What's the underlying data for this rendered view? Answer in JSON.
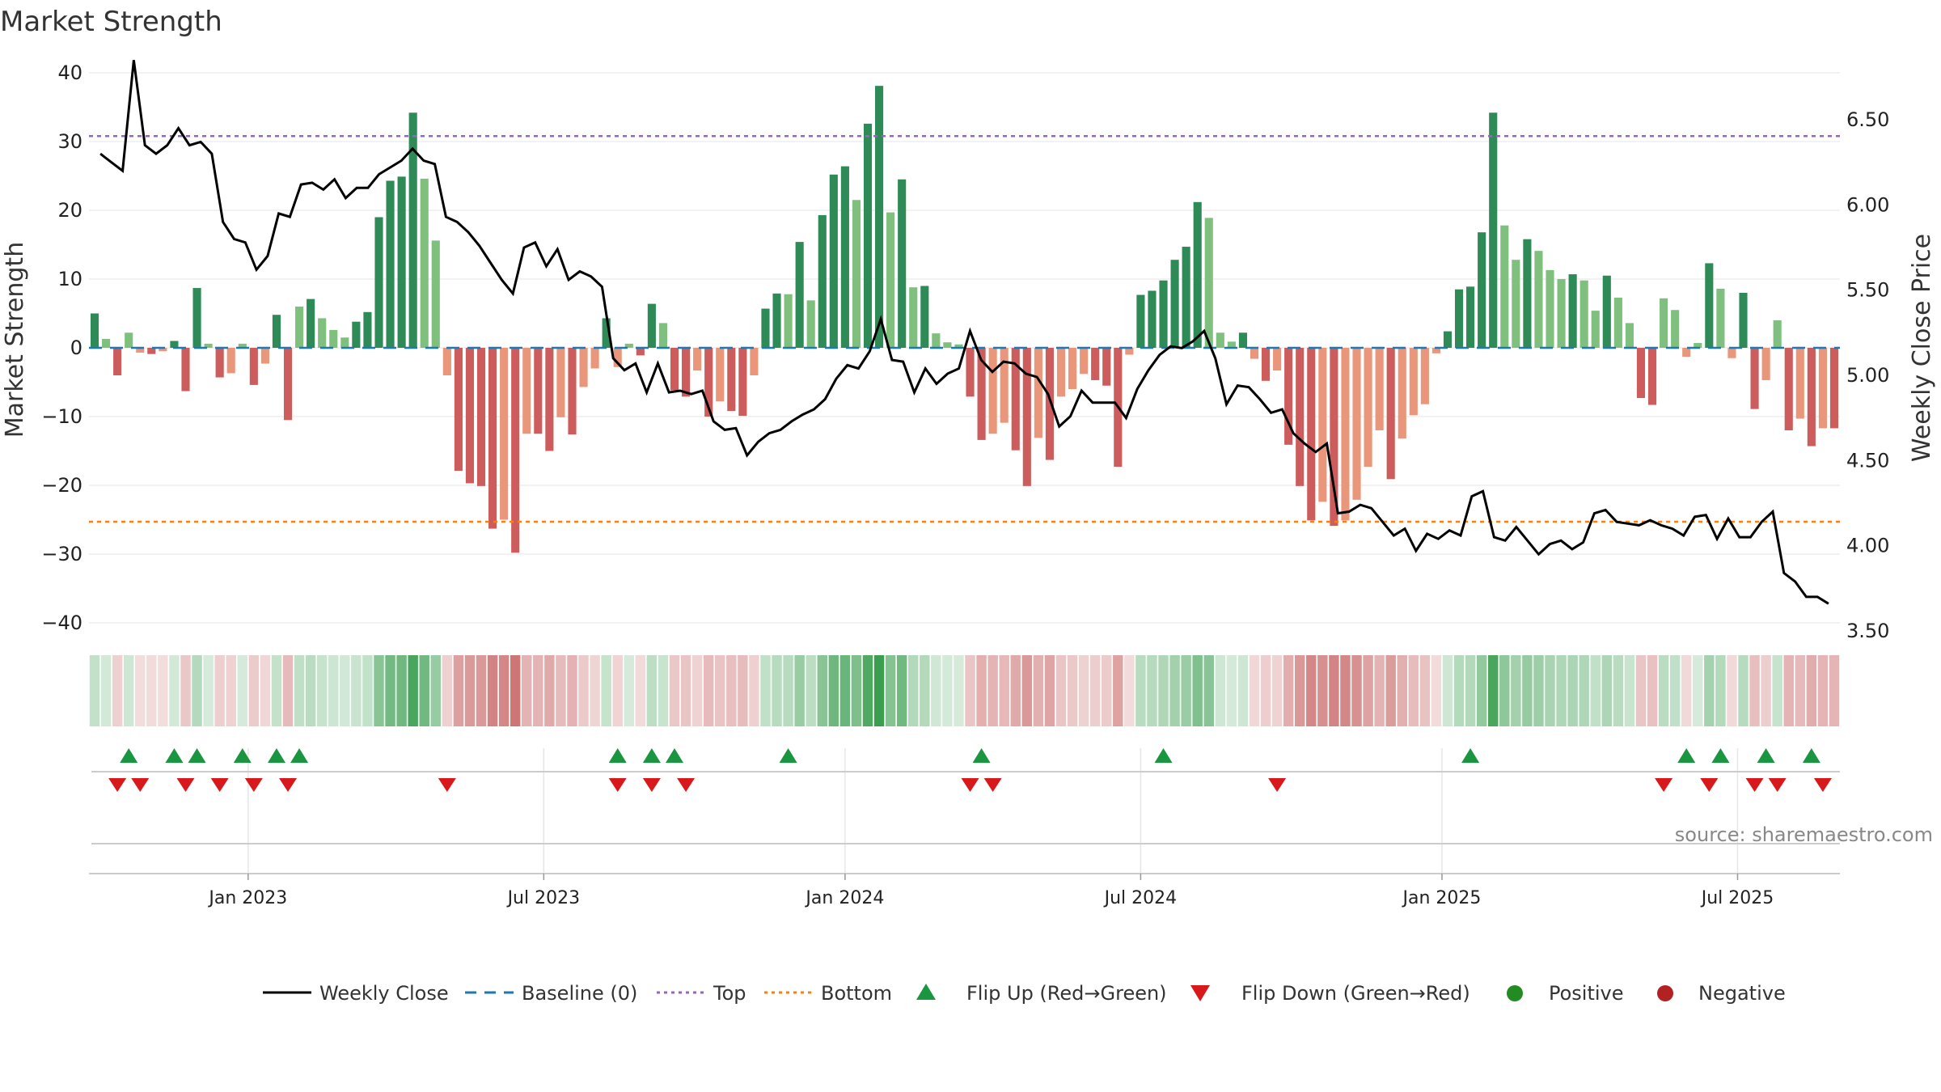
{
  "chart_data": {
    "type": "bar",
    "title": "Market Strength",
    "ylabel": "Market Strength",
    "y2label": "Weekly Close Price",
    "ylim": [
      -40,
      40
    ],
    "y2lim": [
      3.5,
      6.7
    ],
    "yticks": [
      40,
      30,
      20,
      10,
      0,
      -10,
      -20,
      -30,
      -40
    ],
    "y2ticks": [
      "6.50",
      "6.00",
      "5.50",
      "5.00",
      "4.50",
      "4.00",
      "3.50"
    ],
    "top_line": 30.8,
    "bottom_line": -25.3,
    "x_ticks": [
      "Jan 2023",
      "Jul 2023",
      "Jan 2024",
      "Jul 2024",
      "Jan 2025",
      "Jul 2025"
    ],
    "x_tick_weeks": [
      14,
      40,
      66.5,
      92.5,
      119,
      145
    ],
    "strength": [
      5,
      1.3,
      -4,
      2.2,
      -0.7,
      -0.9,
      -0.5,
      1,
      -6.3,
      8.7,
      0.6,
      -4.3,
      -3.7,
      0.6,
      -5.4,
      -2.3,
      4.8,
      -10.5,
      6,
      7.1,
      4.3,
      2.6,
      1.5,
      3.8,
      5.2,
      19,
      24.3,
      24.9,
      34.2,
      24.6,
      15.6,
      -4,
      -17.9,
      -19.7,
      -20.1,
      -26.3,
      -25,
      -29.8,
      -12.5,
      -12.5,
      -15,
      -10.1,
      -12.6,
      -5.7,
      -3,
      4.3,
      -2.8,
      0.6,
      -1.1,
      6.4,
      3.6,
      -6.2,
      -7.1,
      -3.3,
      -10,
      -7.8,
      -9.2,
      -9.9,
      -4,
      5.7,
      7.9,
      7.8,
      15.4,
      6.9,
      19.3,
      25.2,
      26.4,
      21.5,
      32.6,
      38.1,
      19.7,
      24.5,
      8.8,
      9,
      2.1,
      0.8,
      0.5,
      -7.1,
      -13.4,
      -12.5,
      -10.9,
      -14.9,
      -20.1,
      -13.1,
      -16.3,
      -7.1,
      -6,
      -3.8,
      -4.7,
      -5.5,
      -17.3,
      -1,
      7.7,
      8.3,
      9.8,
      12.8,
      14.7,
      21.2,
      18.9,
      2.2,
      0.9,
      2.2,
      -1.6,
      -4.8,
      -3.3,
      -14.1,
      -20.1,
      -25.1,
      -22.4,
      -25.9,
      -25.1,
      -22.1,
      -17.3,
      -12,
      -19.1,
      -13.2,
      -9.8,
      -8.2,
      -0.8,
      2.4,
      8.5,
      8.9,
      16.8,
      34.2,
      17.8,
      12.8,
      15.8,
      14.1,
      11.3,
      10,
      10.7,
      9.8,
      5.4,
      10.5,
      7.3,
      3.6,
      -7.3,
      -8.3,
      7.2,
      5.5,
      -1.3,
      0.7,
      12.3,
      8.6,
      -1.5,
      8,
      -8.9,
      -4.7,
      4,
      -12,
      -10.3,
      -14.3,
      -11.7,
      -11.7
    ],
    "weekly_close": [
      6.3,
      6.25,
      6.2,
      6.85,
      6.35,
      6.3,
      6.35,
      6.45,
      6.35,
      6.37,
      6.3,
      5.9,
      5.8,
      5.78,
      5.62,
      5.7,
      5.95,
      5.93,
      6.12,
      6.13,
      6.09,
      6.15,
      6.04,
      6.1,
      6.1,
      6.18,
      6.22,
      6.26,
      6.33,
      6.26,
      6.24,
      5.93,
      5.9,
      5.84,
      5.76,
      5.66,
      5.56,
      5.48,
      5.75,
      5.78,
      5.64,
      5.74,
      5.56,
      5.61,
      5.58,
      5.52,
      5.1,
      5.03,
      5.07,
      4.9,
      5.07,
      4.9,
      4.91,
      4.89,
      4.91,
      4.73,
      4.68,
      4.69,
      4.53,
      4.61,
      4.66,
      4.68,
      4.73,
      4.77,
      4.8,
      4.86,
      4.98,
      5.06,
      5.04,
      5.14,
      5.33,
      5.09,
      5.08,
      4.9,
      5.04,
      4.95,
      5.01,
      5.04,
      5.26,
      5.09,
      5.02,
      5.08,
      5.07,
      5.01,
      4.99,
      4.89,
      4.7,
      4.76,
      4.91,
      4.84,
      4.84,
      4.84,
      4.75,
      4.92,
      5.03,
      5.12,
      5.17,
      5.16,
      5.2,
      5.26,
      5.1,
      4.83,
      4.94,
      4.93,
      4.86,
      4.78,
      4.8,
      4.66,
      4.6,
      4.55,
      4.6,
      4.19,
      4.2,
      4.24,
      4.22,
      4.14,
      4.06,
      4.1,
      3.97,
      4.07,
      4.04,
      4.09,
      4.06,
      4.29,
      4.32,
      4.05,
      4.03,
      4.11,
      4.03,
      3.95,
      4.01,
      4.03,
      3.98,
      4.02,
      4.19,
      4.21,
      4.14,
      4.13,
      4.12,
      4.15,
      4.12,
      4.1,
      4.06,
      4.17,
      4.18,
      4.04,
      4.16,
      4.05,
      4.05,
      4.14,
      4.2,
      3.84,
      3.79,
      3.7,
      3.7,
      3.66
    ],
    "strip_values": [
      5,
      1.3,
      -4,
      2.2,
      -0.7,
      -0.9,
      -0.5,
      1,
      -6.3,
      8.7,
      0.6,
      -4.3,
      -3.7,
      0.6,
      -5.4,
      -2.3,
      4.8,
      -10.5,
      6,
      7.1,
      4.3,
      2.6,
      1.5,
      3.8,
      5.2,
      19,
      24.3,
      24.9,
      34.2,
      24.6,
      15.6,
      -4,
      -17.9,
      -19.7,
      -20.1,
      -26.3,
      -25,
      -29.8,
      -12.5,
      -12.5,
      -15,
      -10.1,
      -12.6,
      -5.7,
      -3,
      4.3,
      -2.8,
      0.6,
      -1.1,
      6.4,
      3.6,
      -6.2,
      -7.1,
      -3.3,
      -10,
      -7.8,
      -9.2,
      -9.9,
      -4,
      5.7,
      7.9,
      7.8,
      15.4,
      6.9,
      19.3,
      25.2,
      26.4,
      21.5,
      32.6,
      38.1,
      19.7,
      24.5,
      8.8,
      9,
      2.1,
      0.8,
      0.5,
      -7.1,
      -13.4,
      -12.5,
      -10.9,
      -14.9,
      -20.1,
      -13.1,
      -16.3,
      -7.1,
      -6,
      -3.8,
      -4.7,
      -5.5,
      -17.3,
      -1,
      7.7,
      8.3,
      9.8,
      12.8,
      14.7,
      21.2,
      18.9,
      2.2,
      0.9,
      2.2,
      -1.6,
      -4.8,
      -3.3,
      -14.1,
      -20.1,
      -25.1,
      -22.4,
      -25.9,
      -25.1,
      -22.1,
      -17.3,
      -12,
      -19.1,
      -13.2,
      -9.8,
      -8.2,
      -0.8,
      2.4,
      8.5,
      8.9,
      16.8,
      34.2,
      17.8,
      12.8,
      15.8,
      14.1,
      11.3,
      10,
      10.7,
      9.8,
      5.4,
      10.5,
      7.3,
      3.6,
      -7.3,
      -8.3,
      7.2,
      5.5,
      -1.3,
      0.7,
      12.3,
      8.6,
      -1.5,
      8,
      -8.9,
      -4.7,
      4,
      -12,
      -10.3,
      -14.3,
      -11.7,
      -11.7
    ],
    "flip_up_weeks": [
      3,
      7,
      9,
      13,
      16,
      18,
      46,
      49,
      51,
      61,
      78,
      94,
      121,
      140,
      143,
      147,
      151
    ],
    "flip_down_weeks": [
      2,
      4,
      8,
      11,
      14,
      17,
      31,
      46,
      49,
      52,
      77,
      79,
      104,
      138,
      142,
      146,
      148,
      152
    ],
    "legend": [
      "Weekly Close",
      "Baseline (0)",
      "Top",
      "Bottom",
      "Flip Up (Red→Green)",
      "Flip Down (Green→Red)",
      "Positive",
      "Negative"
    ],
    "source": "source: sharemaestro.com",
    "colors": {
      "strong_green": "#2e8b57",
      "light_green": "#7fc07f",
      "strong_red": "#cd5c5c",
      "light_red": "#e9967a",
      "line": "#000000",
      "baseline": "#1f77b4",
      "top": "#9467bd",
      "bottom": "#ff7f0e",
      "flip_up": "#1a9641",
      "flip_down": "#d7191c",
      "positive": "#228b22",
      "negative": "#b22222"
    }
  }
}
